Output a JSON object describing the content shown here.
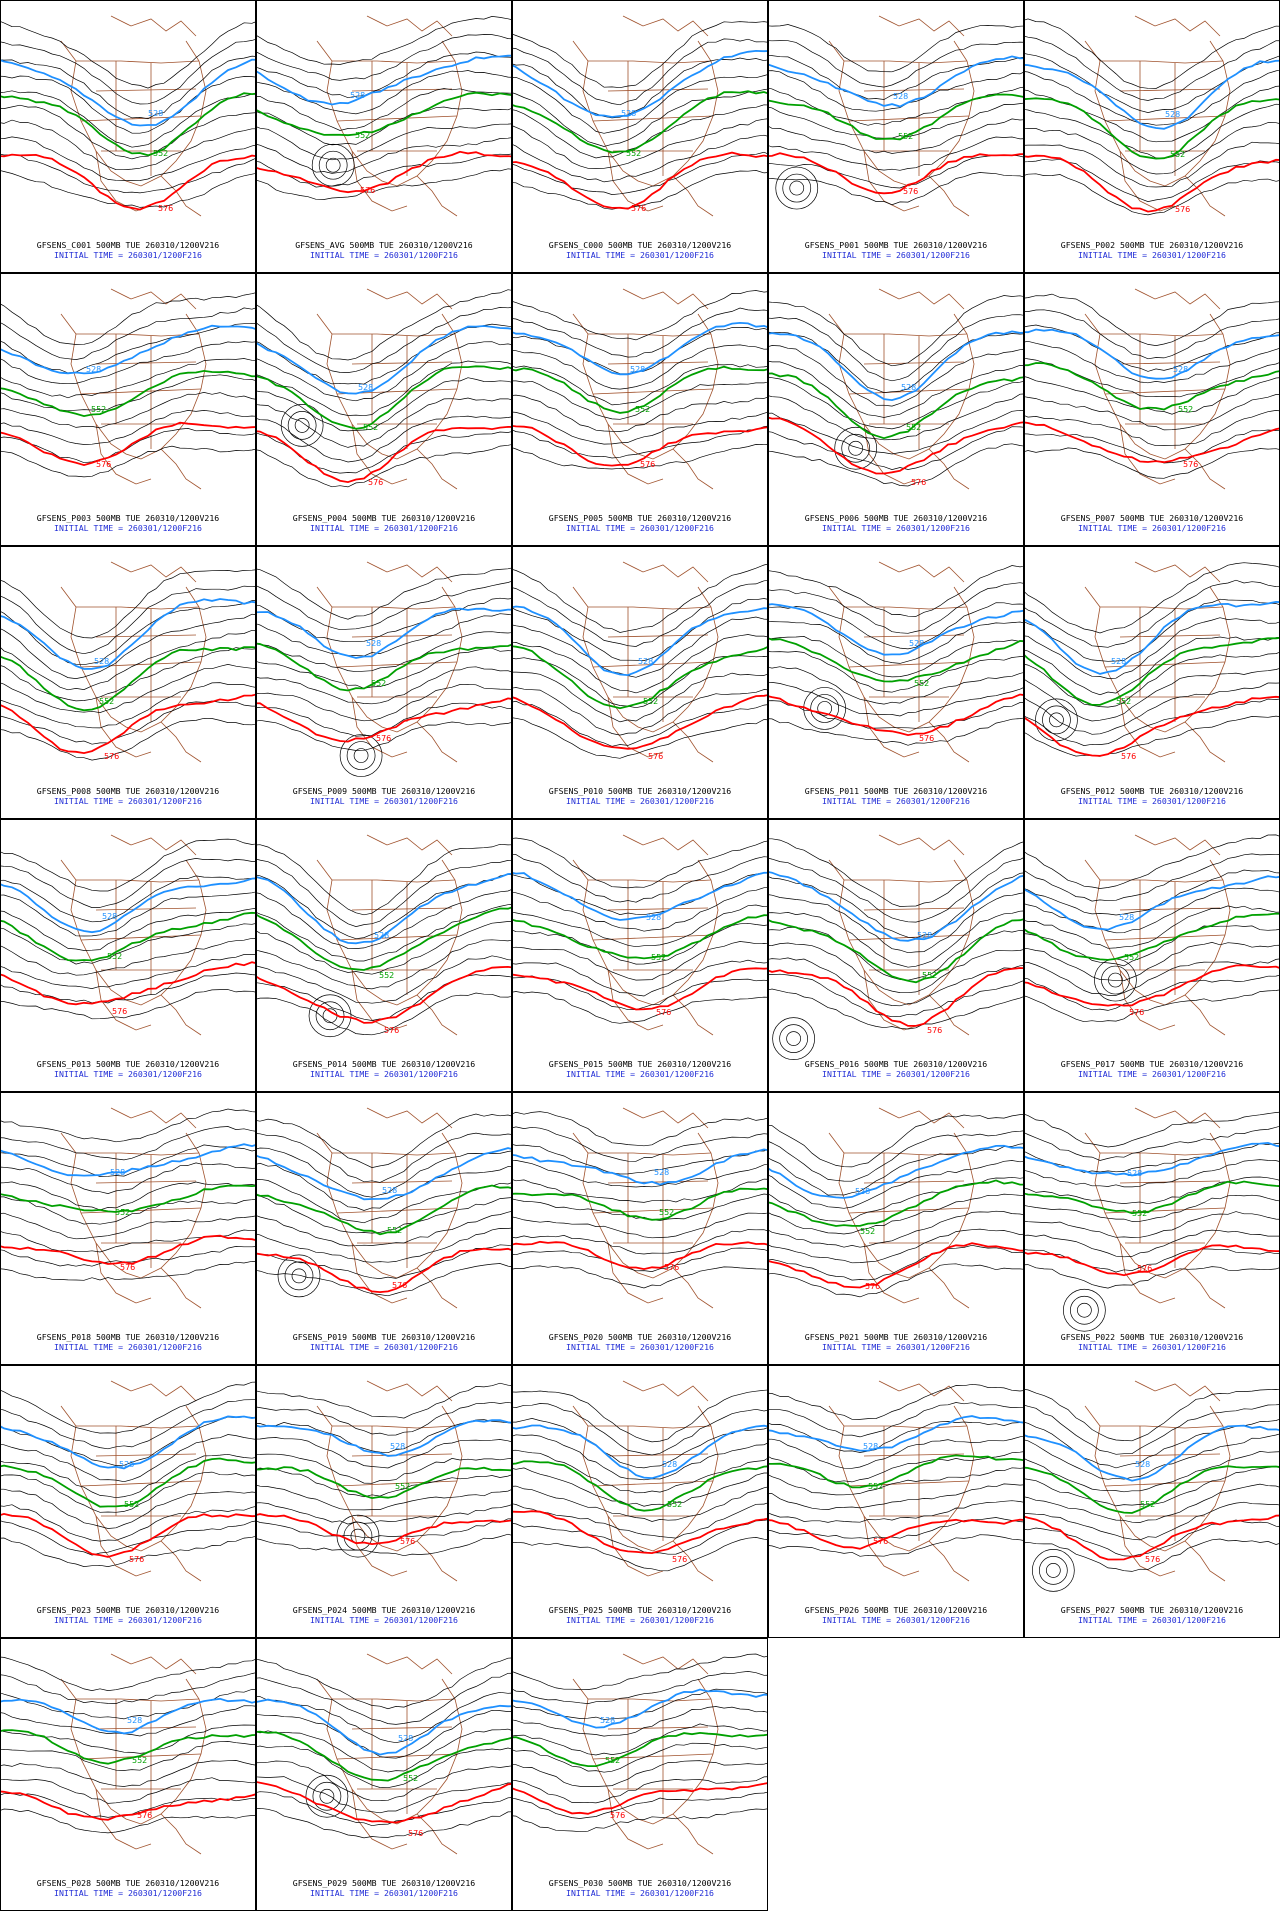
{
  "caption_line2": "INITIAL TIME = 260301/1200F216",
  "contour_labels": {
    "blue": "528",
    "green": "552",
    "red": "576"
  },
  "colors": {
    "contour": "#000000",
    "contour_528": "#1e90ff",
    "contour_552": "#00a000",
    "contour_576": "#ff0000",
    "coastline": "#a0522d",
    "caption_line2": "#1f2bd6",
    "panel_border": "#000000"
  },
  "panels": [
    {
      "title": "GFSENS_C001 500MB TUE 260310/1200V216"
    },
    {
      "title": "GFSENS_AVG 500MB TUE 260310/1200V216"
    },
    {
      "title": "GFSENS_C000 500MB TUE 260310/1200V216"
    },
    {
      "title": "GFSENS_P001 500MB TUE 260310/1200V216"
    },
    {
      "title": "GFSENS_P002 500MB TUE 260310/1200V216"
    },
    {
      "title": "GFSENS_P003 500MB TUE 260310/1200V216"
    },
    {
      "title": "GFSENS_P004 500MB TUE 260310/1200V216"
    },
    {
      "title": "GFSENS_P005 500MB TUE 260310/1200V216"
    },
    {
      "title": "GFSENS_P006 500MB TUE 260310/1200V216"
    },
    {
      "title": "GFSENS_P007 500MB TUE 260310/1200V216"
    },
    {
      "title": "GFSENS_P008 500MB TUE 260310/1200V216"
    },
    {
      "title": "GFSENS_P009 500MB TUE 260310/1200V216"
    },
    {
      "title": "GFSENS_P010 500MB TUE 260310/1200V216"
    },
    {
      "title": "GFSENS_P011 500MB TUE 260310/1200V216"
    },
    {
      "title": "GFSENS_P012 500MB TUE 260310/1200V216"
    },
    {
      "title": "GFSENS_P013 500MB TUE 260310/1200V216"
    },
    {
      "title": "GFSENS_P014 500MB TUE 260310/1200V216"
    },
    {
      "title": "GFSENS_P015 500MB TUE 260310/1200V216"
    },
    {
      "title": "GFSENS_P016 500MB TUE 260310/1200V216"
    },
    {
      "title": "GFSENS_P017 500MB TUE 260310/1200V216"
    },
    {
      "title": "GFSENS_P018 500MB TUE 260310/1200V216"
    },
    {
      "title": "GFSENS_P019 500MB TUE 260310/1200V216"
    },
    {
      "title": "GFSENS_P020 500MB TUE 260310/1200V216"
    },
    {
      "title": "GFSENS_P021 500MB TUE 260310/1200V216"
    },
    {
      "title": "GFSENS_P022 500MB TUE 260310/1200V216"
    },
    {
      "title": "GFSENS_P023 500MB TUE 260310/1200V216"
    },
    {
      "title": "GFSENS_P024 500MB TUE 260310/1200V216"
    },
    {
      "title": "GFSENS_P025 500MB TUE 260310/1200V216"
    },
    {
      "title": "GFSENS_P026 500MB TUE 260310/1200V216"
    },
    {
      "title": "GFSENS_P027 500MB TUE 260310/1200V216"
    },
    {
      "title": "GFSENS_P028 500MB TUE 260310/1200V216"
    },
    {
      "title": "GFSENS_P029 500MB TUE 260310/1200V216"
    },
    {
      "title": "GFSENS_P030 500MB TUE 260310/1200V216"
    }
  ]
}
